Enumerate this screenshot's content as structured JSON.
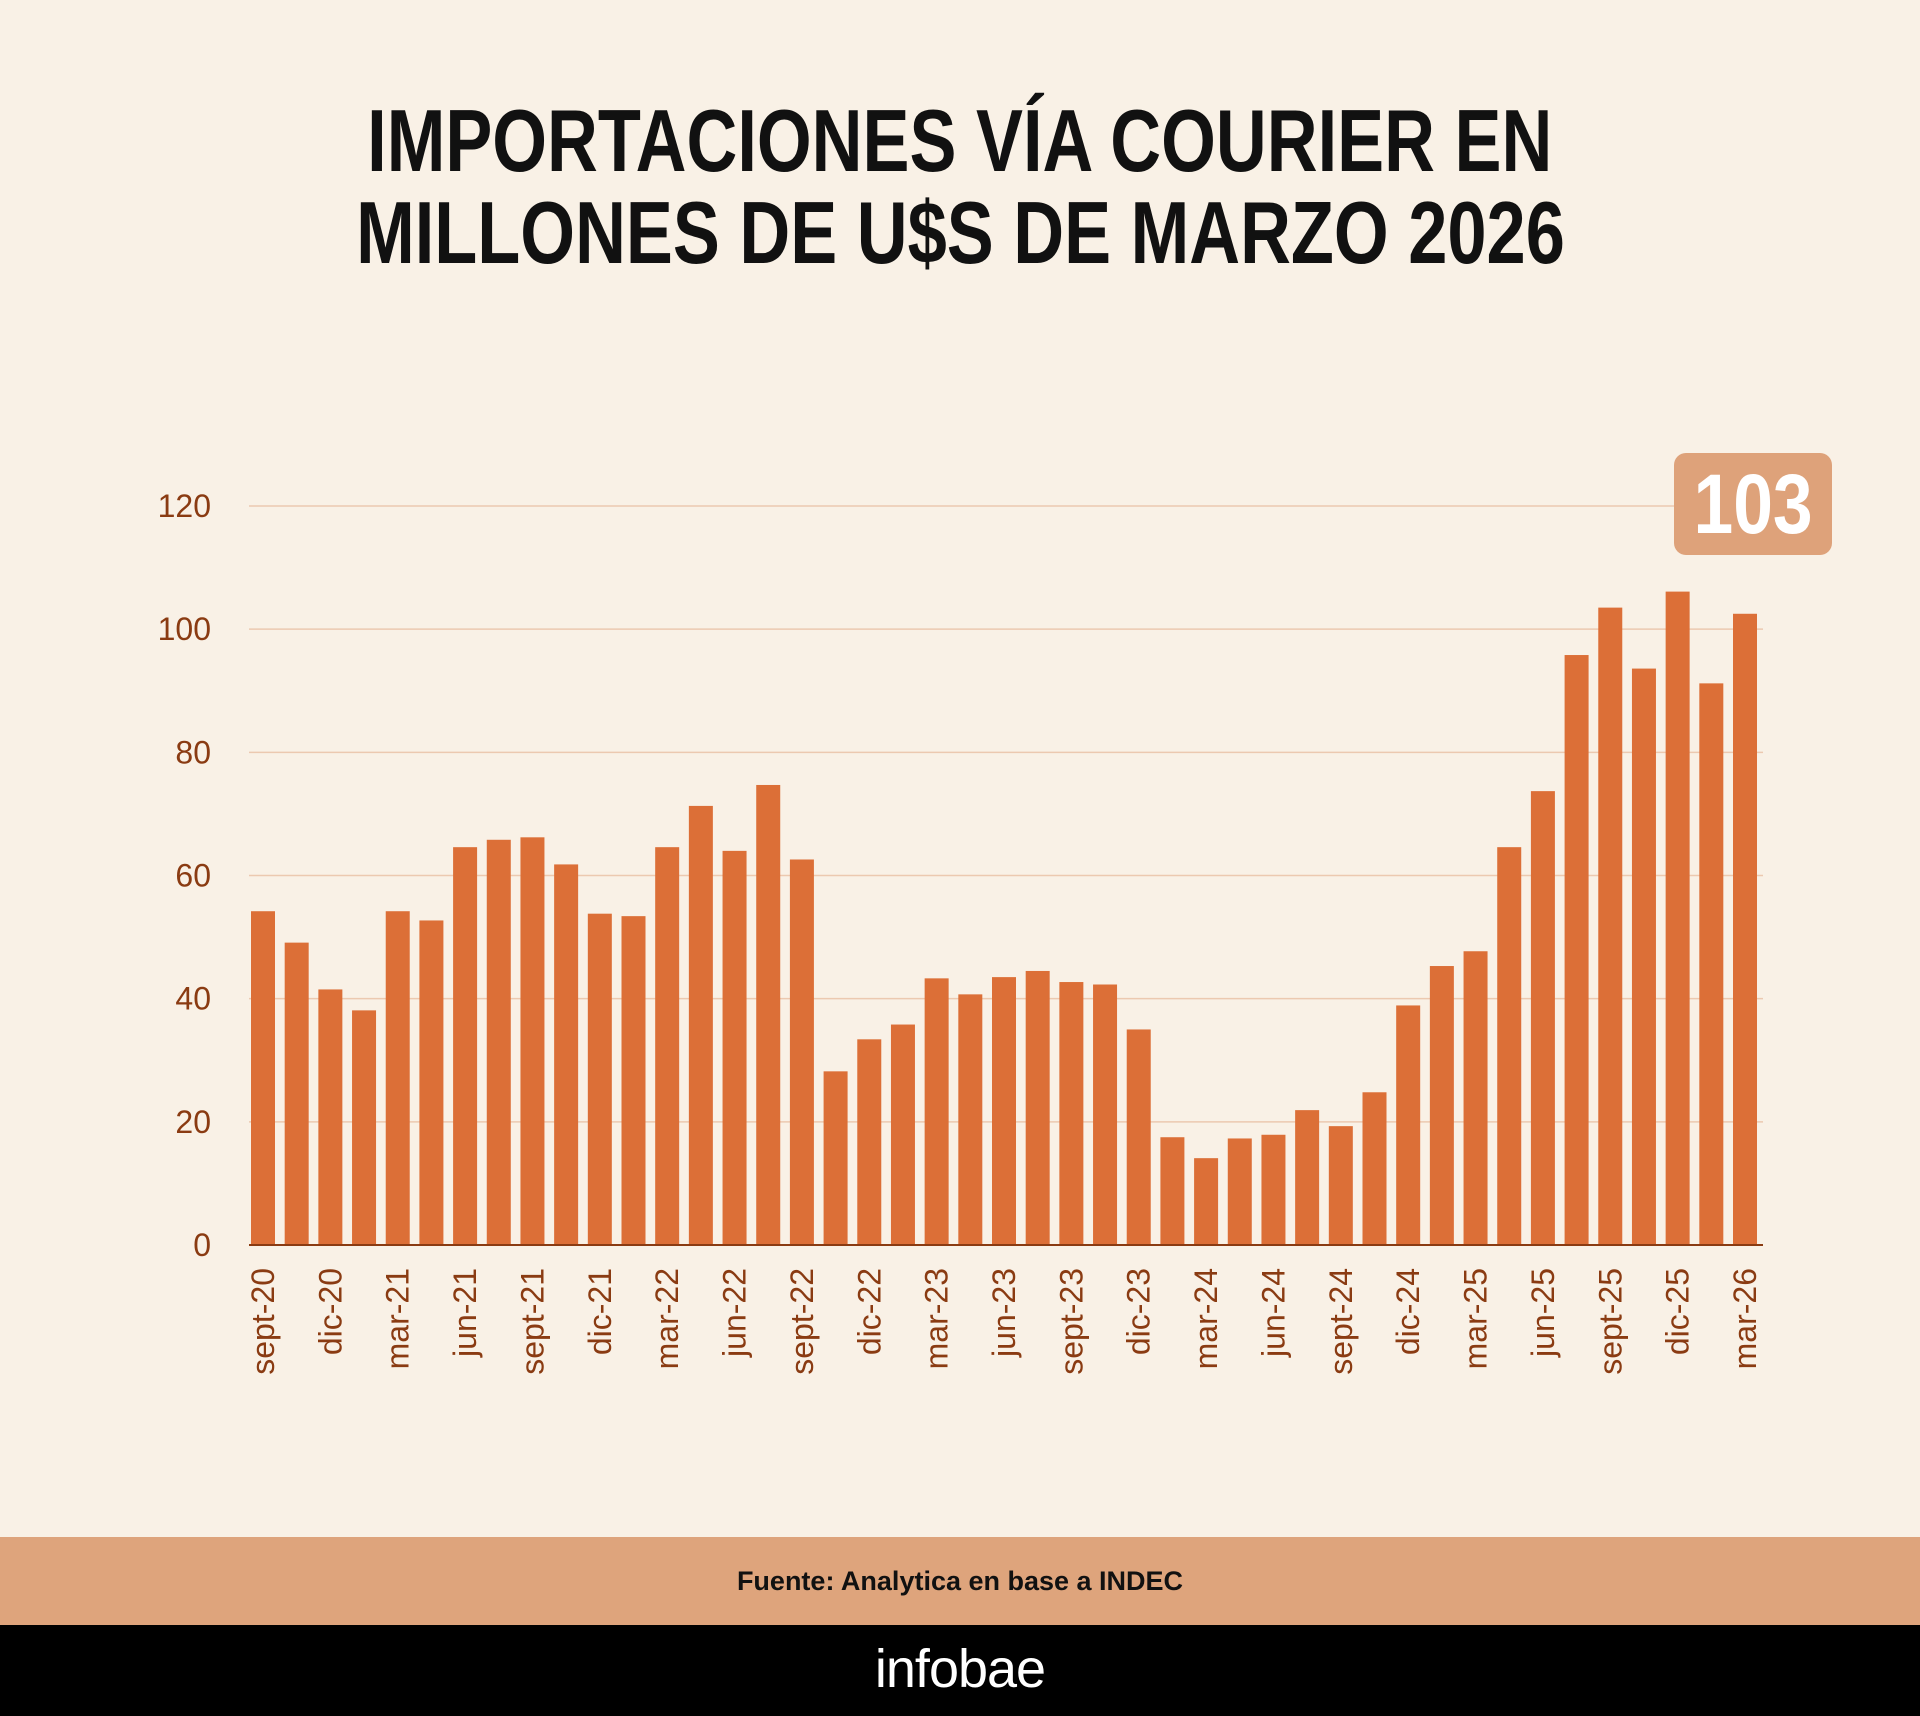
{
  "chart_data": {
    "type": "bar",
    "title": "IMPORTACIONES VÍA COURIER EN MILLONES DE U$S DE MARZO 2026",
    "title_lines": [
      "IMPORTACIONES VÍA COURIER EN",
      "MILLONES DE U$S DE MARZO 2026"
    ],
    "ylim": [
      0,
      120
    ],
    "yticks": [
      0,
      20,
      40,
      60,
      80,
      100,
      120
    ],
    "grid": true,
    "bar_color": "#dc6f37",
    "grid_color": "#ecc9b0",
    "tick_label_color": "#8a3b12",
    "xtick_labels": [
      "sept-20",
      "dic-20",
      "mar-21",
      "jun-21",
      "sept-21",
      "dic-21",
      "mar-22",
      "jun-22",
      "sept-22",
      "dic-22",
      "mar-23",
      "jun-23",
      "sept-23",
      "dic-23",
      "mar-24",
      "jun-24",
      "sept-24",
      "dic-24",
      "mar-25",
      "jun-25",
      "sept-25",
      "dic-25",
      "mar-26"
    ],
    "values": [
      54.2,
      49.1,
      41.5,
      38.1,
      54.2,
      52.7,
      64.6,
      65.8,
      66.2,
      61.8,
      53.8,
      53.4,
      64.6,
      71.3,
      64.0,
      74.7,
      62.6,
      28.2,
      33.4,
      35.8,
      43.3,
      40.7,
      43.5,
      44.5,
      42.7,
      42.3,
      35.0,
      17.5,
      14.1,
      17.3,
      17.9,
      21.9,
      19.3,
      24.8,
      38.9,
      45.3,
      47.7,
      64.6,
      73.7,
      95.8,
      103.5,
      93.6,
      106.1,
      91.2,
      102.5
    ],
    "annotation": "103",
    "annotation_color": "#dea27a"
  },
  "source": "Fuente: Analytica en base a INDEC",
  "brand": "infobae"
}
